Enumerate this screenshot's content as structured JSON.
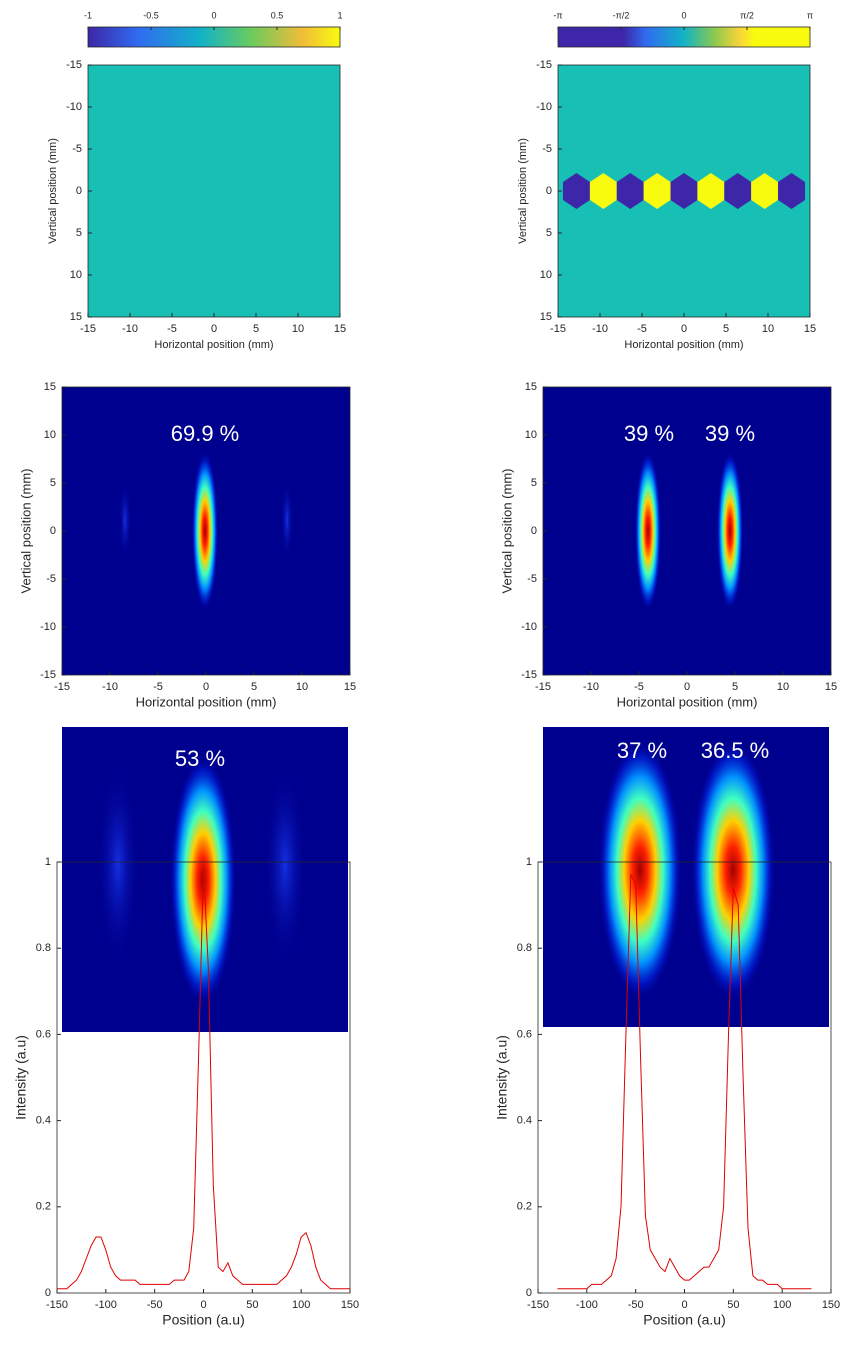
{
  "chart_data": [
    {
      "type": "heatmap",
      "color": "#17bfb5",
      "clim": [
        -1,
        1
      ],
      "colorbar_ticks": [
        -1,
        -0.5,
        0,
        0.5,
        1
      ],
      "xlim": [
        -15,
        15
      ],
      "xticks": [
        -15,
        -10,
        -5,
        0,
        5,
        10,
        15
      ],
      "ylim": [
        -15,
        15
      ],
      "yticks": [
        -15,
        -10,
        -5,
        0,
        5,
        10,
        15
      ],
      "y_reversed": true,
      "xlabel": "Horizontal position (mm)",
      "ylabel": "Vertical position (mm)"
    },
    {
      "type": "phase",
      "color": "#17bfb5",
      "clim": [
        -3.1416,
        3.1416
      ],
      "colorbar_ticks": [
        {
          "value": -3.1416,
          "label": "-π"
        },
        {
          "value": -1.5708,
          "label": "-π/2"
        },
        0,
        {
          "value": 1.5708,
          "label": "π/2"
        },
        {
          "value": 3.1416,
          "label": "π"
        }
      ],
      "xlim": [
        -15,
        15
      ],
      "xticks": [
        -15,
        -10,
        -5,
        0,
        5,
        10,
        15
      ],
      "ylim": [
        -15,
        15
      ],
      "yticks": [
        -15,
        -10,
        -5,
        0,
        5,
        10,
        15
      ],
      "y_reversed": true,
      "xlabel": "Horizontal position (mm)",
      "ylabel": "Vertical position (mm)"
    },
    {
      "type": "intensity",
      "color": "#00008f",
      "annotations": [
        "69.9 %"
      ],
      "xlim": [
        -15,
        15
      ],
      "xticks": [
        -15,
        -10,
        -5,
        0,
        5,
        10,
        15
      ],
      "ylim": [
        -15,
        15
      ],
      "yticks": [
        -15,
        -10,
        -5,
        0,
        5,
        10,
        15
      ],
      "y_reversed": false,
      "xlabel": "Horizontal position (mm)",
      "ylabel": "Vertical position (mm)"
    },
    {
      "type": "intensity",
      "color": "#00008f",
      "annotations": [
        "39 %",
        "39 %"
      ],
      "xlim": [
        -15,
        15
      ],
      "xticks": [
        -15,
        -10,
        -5,
        0,
        5,
        10,
        15
      ],
      "ylim": [
        -15,
        15
      ],
      "yticks": [
        -15,
        -10,
        -5,
        0,
        5,
        10,
        15
      ],
      "y_reversed": false,
      "xlabel": "Horizontal position (mm)",
      "ylabel": "Vertical position (mm)"
    },
    {
      "type": "image",
      "color": "#00008f",
      "annotations": [
        "53 %"
      ]
    },
    {
      "type": "image",
      "color": "#00008f",
      "annotations": [
        "37 %",
        "36.5 %"
      ]
    },
    {
      "type": "line",
      "color": "#e00000",
      "xlabel": "Position (a.u)",
      "ylabel": "Intensity (a.u)",
      "xlim": [
        -150,
        150
      ],
      "xticks": [
        -150,
        -100,
        -50,
        0,
        50,
        100,
        150
      ],
      "ylim": [
        0,
        1
      ],
      "yticks": [
        0,
        0.2,
        0.4,
        0.6,
        0.8,
        1
      ],
      "x": [
        -150,
        -145,
        -140,
        -135,
        -130,
        -125,
        -120,
        -115,
        -110,
        -105,
        -100,
        -95,
        -90,
        -85,
        -80,
        -75,
        -70,
        -65,
        -60,
        -55,
        -50,
        -45,
        -40,
        -35,
        -30,
        -25,
        -20,
        -15,
        -10,
        -5,
        0,
        5,
        10,
        15,
        20,
        25,
        30,
        35,
        40,
        45,
        50,
        55,
        60,
        65,
        70,
        75,
        80,
        85,
        90,
        95,
        100,
        105,
        110,
        115,
        120,
        125,
        130,
        135,
        140,
        145,
        150
      ],
      "values": [
        0.01,
        0.01,
        0.01,
        0.02,
        0.03,
        0.05,
        0.08,
        0.11,
        0.13,
        0.13,
        0.1,
        0.06,
        0.04,
        0.03,
        0.03,
        0.03,
        0.03,
        0.02,
        0.02,
        0.02,
        0.02,
        0.02,
        0.02,
        0.02,
        0.03,
        0.03,
        0.03,
        0.05,
        0.15,
        0.55,
        0.99,
        0.75,
        0.25,
        0.06,
        0.05,
        0.07,
        0.04,
        0.03,
        0.02,
        0.02,
        0.02,
        0.02,
        0.02,
        0.02,
        0.02,
        0.02,
        0.03,
        0.04,
        0.06,
        0.09,
        0.13,
        0.14,
        0.11,
        0.06,
        0.03,
        0.02,
        0.01,
        0.01,
        0.01,
        0.01,
        0.01
      ]
    },
    {
      "type": "line",
      "color": "#e00000",
      "xlabel": "Position (a.u)",
      "ylabel": "Intensity (a.u)",
      "xlim": [
        -150,
        150
      ],
      "xticks": [
        -150,
        -100,
        -50,
        0,
        50,
        100,
        150
      ],
      "ylim": [
        0,
        1
      ],
      "yticks": [
        0,
        0.2,
        0.4,
        0.6,
        0.8,
        1
      ],
      "x": [
        -130,
        -125,
        -120,
        -115,
        -110,
        -105,
        -100,
        -95,
        -90,
        -85,
        -80,
        -75,
        -70,
        -65,
        -60,
        -55,
        -50,
        -45,
        -40,
        -35,
        -30,
        -25,
        -20,
        -15,
        -10,
        -5,
        0,
        5,
        10,
        15,
        20,
        25,
        30,
        35,
        40,
        45,
        50,
        55,
        60,
        65,
        70,
        75,
        80,
        85,
        90,
        95,
        100,
        105,
        110,
        115,
        120,
        125,
        130
      ],
      "values": [
        0.01,
        0.01,
        0.01,
        0.01,
        0.01,
        0.01,
        0.01,
        0.02,
        0.02,
        0.02,
        0.03,
        0.04,
        0.08,
        0.2,
        0.6,
        0.97,
        0.95,
        0.55,
        0.18,
        0.1,
        0.08,
        0.06,
        0.05,
        0.08,
        0.06,
        0.04,
        0.03,
        0.03,
        0.04,
        0.05,
        0.06,
        0.06,
        0.08,
        0.1,
        0.2,
        0.6,
        0.94,
        0.9,
        0.5,
        0.15,
        0.04,
        0.03,
        0.03,
        0.02,
        0.02,
        0.02,
        0.01,
        0.01,
        0.01,
        0.01,
        0.01,
        0.01,
        0.01
      ]
    }
  ]
}
